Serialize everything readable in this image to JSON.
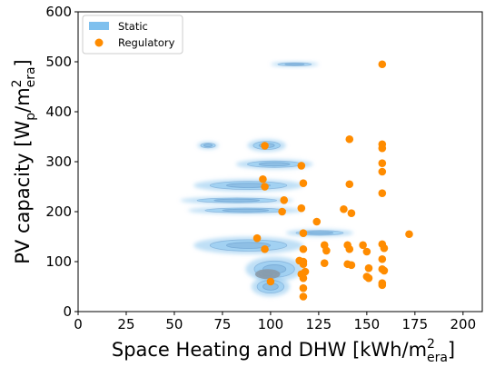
{
  "chart_data": {
    "type": "scatter",
    "xlabel": {
      "main": "Space Heating and DHW [kWh/m",
      "sup": "2",
      "sub": "era",
      "close": "]"
    },
    "ylabel": {
      "main": "PV capacity [W",
      "sub1": "p",
      "mid": "/m",
      "sup": "2",
      "sub2": "era",
      "close": "]"
    },
    "xlim": [
      0,
      210
    ],
    "ylim": [
      0,
      600
    ],
    "xticks": [
      0,
      25,
      50,
      75,
      100,
      125,
      150,
      175,
      200
    ],
    "yticks": [
      0,
      100,
      200,
      300,
      400,
      500,
      600
    ],
    "grid": false,
    "legend_position": "upper-left",
    "colors": {
      "static": "#7fc0ee",
      "static_dense": "#5a8fc4",
      "static_core": "#8a9aa8",
      "regulatory": "#ff8c00"
    },
    "series": [
      {
        "name": "Static",
        "kind": "density",
        "regions": [
          {
            "x": [
              100,
              125
            ],
            "y": [
              490,
              500
            ]
          },
          {
            "x": [
              62,
              73
            ],
            "y": [
              325,
              340
            ]
          },
          {
            "x": [
              88,
              108
            ],
            "y": [
              320,
              345
            ]
          },
          {
            "x": [
              82,
              122
            ],
            "y": [
              285,
              305
            ]
          },
          {
            "x": [
              60,
              117
            ],
            "y": [
              240,
              265
            ]
          },
          {
            "x": [
              53,
              112
            ],
            "y": [
              215,
              230
            ]
          },
          {
            "x": [
              57,
              117
            ],
            "y": [
              195,
              210
            ]
          },
          {
            "x": [
              108,
              143
            ],
            "y": [
              150,
              165
            ]
          },
          {
            "x": [
              60,
              117
            ],
            "y": [
              115,
              150
            ]
          },
          {
            "x": [
              87,
              117
            ],
            "y": [
              60,
              110
            ]
          },
          {
            "x": [
              90,
              110
            ],
            "y": [
              30,
              70
            ]
          },
          {
            "x": [
              92,
              105
            ],
            "y": [
              65,
              85
            ]
          }
        ]
      },
      {
        "name": "Regulatory",
        "kind": "points",
        "points": [
          [
            97,
            332
          ],
          [
            96,
            265
          ],
          [
            97,
            250
          ],
          [
            107,
            223
          ],
          [
            106,
            200
          ],
          [
            97,
            125
          ],
          [
            93,
            147
          ],
          [
            100,
            60
          ],
          [
            116,
            292
          ],
          [
            117,
            257
          ],
          [
            116,
            207
          ],
          [
            117,
            157
          ],
          [
            117,
            125
          ],
          [
            115,
            102
          ],
          [
            117,
            100
          ],
          [
            117,
            95
          ],
          [
            118,
            80
          ],
          [
            116,
            75
          ],
          [
            117,
            67
          ],
          [
            117,
            47
          ],
          [
            117,
            30
          ],
          [
            124,
            180
          ],
          [
            128,
            133
          ],
          [
            129,
            122
          ],
          [
            128,
            97
          ],
          [
            138,
            205
          ],
          [
            141,
            345
          ],
          [
            141,
            255
          ],
          [
            142,
            197
          ],
          [
            140,
            133
          ],
          [
            141,
            125
          ],
          [
            140,
            95
          ],
          [
            142,
            93
          ],
          [
            148,
            133
          ],
          [
            150,
            120
          ],
          [
            151,
            87
          ],
          [
            150,
            70
          ],
          [
            151,
            67
          ],
          [
            158,
            495
          ],
          [
            158,
            335
          ],
          [
            158,
            327
          ],
          [
            158,
            297
          ],
          [
            158,
            280
          ],
          [
            158,
            237
          ],
          [
            158,
            135
          ],
          [
            159,
            127
          ],
          [
            158,
            105
          ],
          [
            158,
            85
          ],
          [
            159,
            82
          ],
          [
            158,
            57
          ],
          [
            158,
            53
          ],
          [
            172,
            155
          ]
        ]
      }
    ]
  }
}
